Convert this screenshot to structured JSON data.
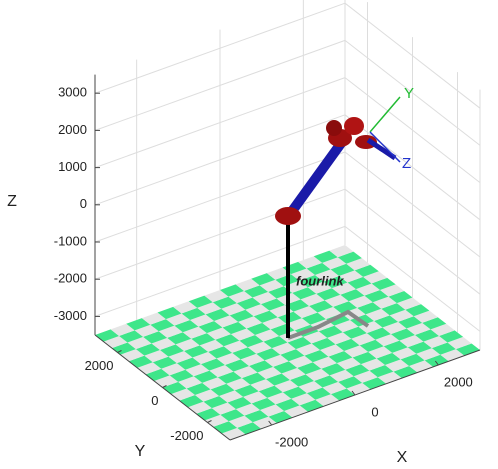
{
  "chart_data": {
    "type": "robot3d",
    "xlabel": "X",
    "ylabel": "Y",
    "zlabel": "Z",
    "xlim": [
      -3000,
      3000
    ],
    "ylim": [
      -3000,
      3000
    ],
    "zlim": [
      -3500,
      3500
    ],
    "xticks": [
      -2000,
      0,
      2000
    ],
    "yticks": [
      -2000,
      0,
      2000
    ],
    "zticks": [
      -3000,
      -2000,
      -1000,
      0,
      1000,
      2000,
      3000
    ],
    "grid": true,
    "robot_name": "fourlink",
    "frame_axes": [
      {
        "label": "Y",
        "color": "#22bb33"
      },
      {
        "label": "Z",
        "color": "#2233cc"
      }
    ]
  }
}
